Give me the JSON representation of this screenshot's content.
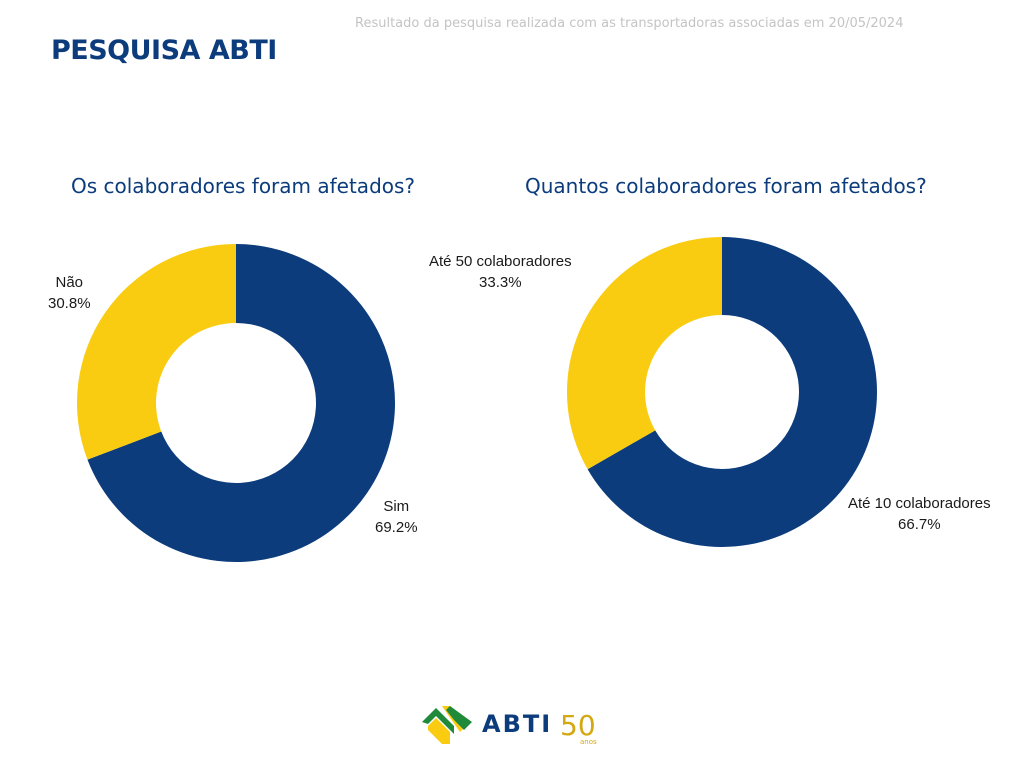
{
  "header": {
    "title": "PESQUISA ABTI",
    "subtitle": "Resultado da pesquisa realizada com as transportadoras associadas em 20/05/2024"
  },
  "colors": {
    "primary": "#0c3c7c",
    "accent": "#f9cc11",
    "subtitle": "#c4c4c4"
  },
  "chart_data": [
    {
      "type": "pie",
      "donut": true,
      "title": "Os colaboradores foram afetados?",
      "categories": [
        "Sim",
        "Não"
      ],
      "values": [
        69.2,
        30.8
      ],
      "colors": [
        "#0c3c7c",
        "#f9cc11"
      ],
      "labels": [
        {
          "name": "Sim",
          "value": "69.2%"
        },
        {
          "name": "Não",
          "value": "30.8%"
        }
      ]
    },
    {
      "type": "pie",
      "donut": true,
      "title": "Quantos colaboradores foram afetados?",
      "categories": [
        "Até 10 colaboradores",
        "Até 50 colaboradores"
      ],
      "values": [
        66.7,
        33.3
      ],
      "colors": [
        "#0c3c7c",
        "#f9cc11"
      ],
      "labels": [
        {
          "name": "Até 10 colaboradores",
          "value": "66.7%"
        },
        {
          "name": "Até 50 colaboradores",
          "value": "33.3%"
        }
      ]
    }
  ],
  "footer": {
    "logo_text": "ABTI",
    "logo_years": "50",
    "logo_anos": "anos"
  }
}
